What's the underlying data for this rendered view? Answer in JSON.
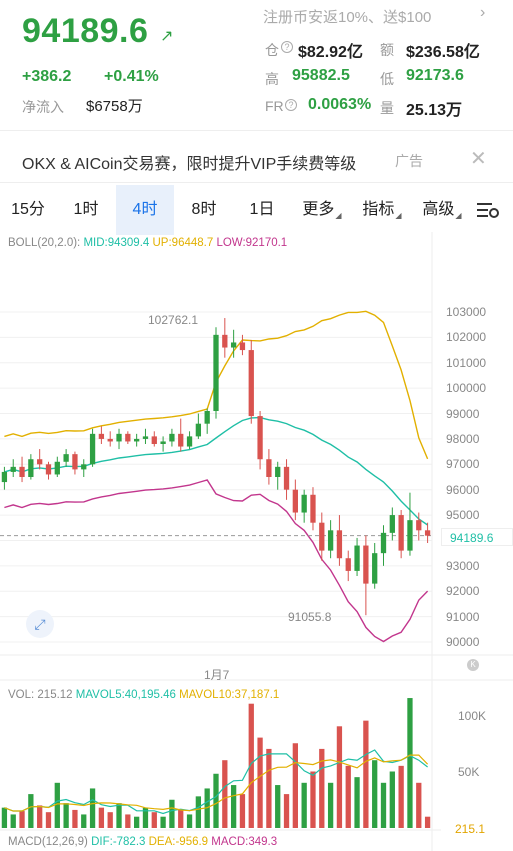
{
  "ticker": {
    "price": "94189.6",
    "arrow": "↗",
    "change_abs": "+386.2",
    "change_pct": "+0.41%",
    "netflow_label": "净流入",
    "netflow_value": "$6758万",
    "promo": "注册币安返10%、送$100",
    "promo_chevron": "›",
    "stats": {
      "cang_label": "仓",
      "cang_value": "$82.92亿",
      "e_label": "额",
      "e_value": "$236.58亿",
      "high_label": "高",
      "high_value": "95882.5",
      "low_label": "低",
      "low_value": "92173.6",
      "fr_label": "FR",
      "fr_value": "0.0063%",
      "liang_label": "量",
      "liang_value": "25.13万"
    }
  },
  "ad": {
    "text": "OKX & AICoin交易赛，限时提升VIP手续费等级",
    "tag": "广告",
    "close": "✕"
  },
  "tabs": [
    {
      "label": "15分",
      "active": false
    },
    {
      "label": "1时",
      "active": false
    },
    {
      "label": "4时",
      "active": true
    },
    {
      "label": "8时",
      "active": false
    },
    {
      "label": "1日",
      "active": false
    },
    {
      "label": "更多",
      "active": false,
      "dropdown": true
    },
    {
      "label": "指标",
      "active": false,
      "dropdown": true
    },
    {
      "label": "高级",
      "active": false,
      "dropdown": true
    }
  ],
  "boll_legend": {
    "name": "BOLL(20,2.0):",
    "mid": "MID:94309.4",
    "up": "UP:96448.7",
    "low": "LOW:92170.1"
  },
  "vol_legend": {
    "name": "VOL: 215.12",
    "mavol5": "MAVOL5:40,195.46",
    "mavol10": "MAVOL10:37,187.1"
  },
  "macd_legend": {
    "name": "MACD(12,26,9)",
    "dif": "DIF:-782.3",
    "dea": "DEA:-956.9",
    "macd": "MACD:349.3"
  },
  "price_axis": [
    "103000",
    "102000",
    "101000",
    "100000",
    "99000",
    "98000",
    "97000",
    "96000",
    "95000",
    "94000",
    "93000",
    "92000",
    "91000",
    "90000"
  ],
  "current_price_tag": "94189.6",
  "high_marker": "102762.1",
  "low_marker": "91055.8",
  "date_label": "1月7",
  "vol_axis": [
    "100K",
    "50K"
  ],
  "vol_current": "215.1",
  "colors": {
    "up": "#2ea043",
    "down": "#d9534f",
    "mid": "#1fbfa6",
    "upper": "#e2b000",
    "lower": "#c2368d",
    "active_tab": "#1a73e8"
  },
  "chart_data": {
    "type": "candlestick",
    "candles": [
      [
        96300,
        96900,
        96000,
        96700
      ],
      [
        96700,
        97200,
        96500,
        96900
      ],
      [
        96900,
        97300,
        96300,
        96500
      ],
      [
        96500,
        97400,
        96400,
        97200
      ],
      [
        97200,
        97600,
        96800,
        97000
      ],
      [
        97000,
        97100,
        96400,
        96600
      ],
      [
        96600,
        97300,
        96500,
        97100
      ],
      [
        97100,
        97600,
        96900,
        97400
      ],
      [
        97400,
        97500,
        96600,
        96800
      ],
      [
        96800,
        97200,
        96500,
        97000
      ],
      [
        97000,
        98400,
        96900,
        98200
      ],
      [
        98200,
        98500,
        97800,
        98000
      ],
      [
        98000,
        98300,
        97700,
        97900
      ],
      [
        97900,
        98400,
        97600,
        98200
      ],
      [
        98200,
        98300,
        97800,
        97900
      ],
      [
        97900,
        98200,
        97700,
        98000
      ],
      [
        98000,
        98400,
        97800,
        98100
      ],
      [
        98100,
        98300,
        97700,
        97800
      ],
      [
        97800,
        98100,
        97500,
        97900
      ],
      [
        97900,
        98400,
        97700,
        98200
      ],
      [
        98200,
        98800,
        97500,
        97700
      ],
      [
        97700,
        98300,
        97600,
        98100
      ],
      [
        98100,
        99000,
        98000,
        98600
      ],
      [
        98600,
        99200,
        98200,
        99100
      ],
      [
        99100,
        102400,
        98800,
        102100
      ],
      [
        102100,
        102762.1,
        101200,
        101600
      ],
      [
        101600,
        102300,
        101200,
        101800
      ],
      [
        101800,
        102100,
        101300,
        101500
      ],
      [
        101500,
        101900,
        98600,
        98900
      ],
      [
        98900,
        99100,
        96800,
        97200
      ],
      [
        97200,
        97600,
        96200,
        96500
      ],
      [
        96500,
        97100,
        96000,
        96900
      ],
      [
        96900,
        97200,
        95600,
        96000
      ],
      [
        96000,
        96400,
        94800,
        95100
      ],
      [
        95100,
        96000,
        94700,
        95800
      ],
      [
        95800,
        96100,
        94400,
        94700
      ],
      [
        94700,
        95100,
        93200,
        93600
      ],
      [
        93600,
        94800,
        93300,
        94400
      ],
      [
        94400,
        95000,
        93000,
        93300
      ],
      [
        93300,
        93600,
        92400,
        92800
      ],
      [
        92800,
        94100,
        92600,
        93800
      ],
      [
        93800,
        94200,
        91055.8,
        92300
      ],
      [
        92300,
        93900,
        92100,
        93500
      ],
      [
        93500,
        94600,
        93000,
        94300
      ],
      [
        94300,
        95300,
        94000,
        95000
      ],
      [
        95000,
        95200,
        93300,
        93600
      ],
      [
        93600,
        95882.5,
        93400,
        94800
      ],
      [
        94800,
        95100,
        94000,
        94400
      ],
      [
        94400,
        94700,
        93900,
        94189.6
      ]
    ],
    "volume": [
      18,
      12,
      15,
      30,
      20,
      14,
      40,
      22,
      16,
      12,
      35,
      18,
      14,
      22,
      12,
      10,
      18,
      14,
      10,
      25,
      16,
      12,
      28,
      35,
      48,
      60,
      38,
      30,
      110,
      80,
      70,
      38,
      30,
      75,
      40,
      50,
      70,
      40,
      90,
      55,
      45,
      95,
      60,
      40,
      50,
      55,
      115,
      40,
      10
    ],
    "ylim": [
      89800,
      104000
    ]
  }
}
